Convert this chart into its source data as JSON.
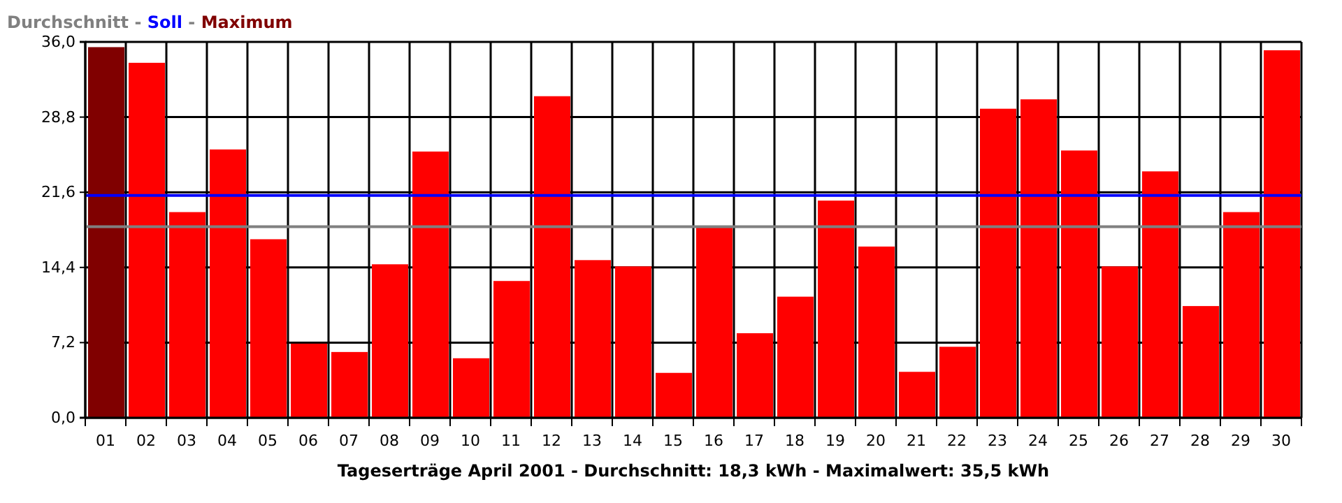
{
  "chart_data": {
    "type": "bar",
    "xlabel": "Tageserträge April 2001 - Durchschnitt: 18,3 kWh - Maximalwert: 35,5 kWh",
    "categories": [
      "01",
      "02",
      "03",
      "04",
      "05",
      "06",
      "07",
      "08",
      "09",
      "10",
      "11",
      "12",
      "13",
      "14",
      "15",
      "16",
      "17",
      "18",
      "19",
      "20",
      "21",
      "22",
      "23",
      "24",
      "25",
      "26",
      "27",
      "28",
      "29",
      "30"
    ],
    "values": [
      35.5,
      34.0,
      19.7,
      25.7,
      17.1,
      7.1,
      6.3,
      14.7,
      25.5,
      5.7,
      13.1,
      30.8,
      15.1,
      14.5,
      4.3,
      18.3,
      8.1,
      11.6,
      20.8,
      16.4,
      4.4,
      6.8,
      29.6,
      30.5,
      25.6,
      14.5,
      23.6,
      10.7,
      19.7,
      35.2
    ],
    "colors": [
      "#800000",
      "#ff0000",
      "#ff0000",
      "#ff0000",
      "#ff0000",
      "#ff0000",
      "#ff0000",
      "#ff0000",
      "#ff0000",
      "#ff0000",
      "#ff0000",
      "#ff0000",
      "#ff0000",
      "#ff0000",
      "#ff0000",
      "#ff0000",
      "#ff0000",
      "#ff0000",
      "#ff0000",
      "#ff0000",
      "#ff0000",
      "#ff0000",
      "#ff0000",
      "#ff0000",
      "#ff0000",
      "#ff0000",
      "#ff0000",
      "#ff0000",
      "#ff0000",
      "#ff0000"
    ],
    "ylim": [
      0,
      36
    ],
    "yticks": [
      {
        "value": 0,
        "label": "0,0"
      },
      {
        "value": 7.2,
        "label": "7,2"
      },
      {
        "value": 14.4,
        "label": "14,4"
      },
      {
        "value": 21.6,
        "label": "21,6"
      },
      {
        "value": 28.8,
        "label": "28,8"
      },
      {
        "value": 36,
        "label": "36,0"
      }
    ],
    "grid": true,
    "ref_lines": [
      {
        "axis": "y",
        "value": 18.3,
        "color": "#808080"
      },
      {
        "axis": "y",
        "value": 21.3,
        "color": "#0000ff"
      }
    ],
    "title": "Durchschnitt - Soll - Maximum"
  }
}
